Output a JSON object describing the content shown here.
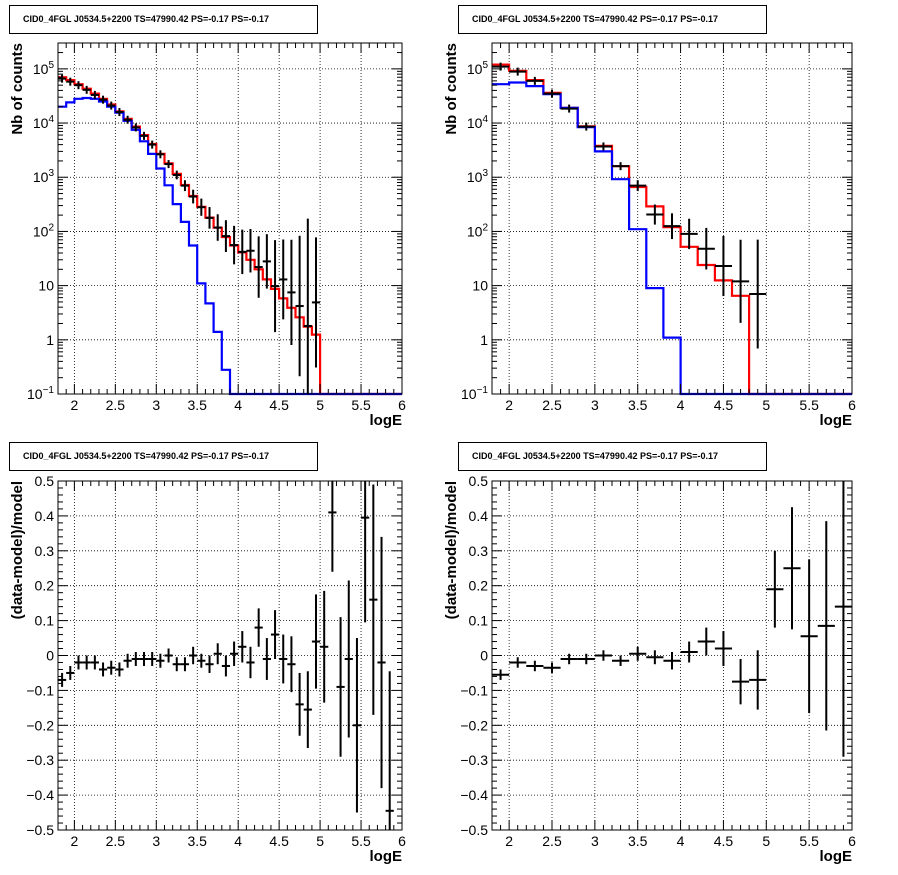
{
  "chart_data": [
    {
      "type": "histogram",
      "title": "CID0_4FGL J0534.5+2200 TS=47990.42 PS=-0.17 PS=-0.17",
      "xlabel": "logE",
      "ylabel": "Nb of counts",
      "xlim": [
        1.8,
        6.0
      ],
      "ylim": [
        0.1,
        300000
      ],
      "ylog": true,
      "grid": true,
      "x_ticks": [
        "2",
        "2.5",
        "3",
        "3.5",
        "4",
        "4.5",
        "5",
        "5.5",
        "6"
      ],
      "y_ticks": [
        "10^-1",
        "1",
        "10",
        "10^2",
        "10^3",
        "10^4",
        "10^5"
      ],
      "bins": {
        "start": 1.8,
        "width": 0.1
      },
      "series": [
        {
          "color": "#ff0000",
          "values": [
            70000,
            62000,
            52000,
            43000,
            35000,
            28000,
            22000,
            16500,
            12000,
            8600,
            6000,
            4100,
            2700,
            1800,
            1150,
            720,
            450,
            285,
            180,
            117,
            79,
            55,
            41,
            30,
            20,
            13,
            8.7,
            5.8,
            3.9,
            2.6,
            1.75,
            1.25
          ]
        },
        {
          "color": "#0000ff",
          "values": [
            20000,
            24000,
            28000,
            29000,
            28000,
            25000,
            20000,
            15500,
            11000,
            7500,
            4600,
            2700,
            1450,
            710,
            320,
            150,
            55,
            11,
            4.7,
            1.4,
            0.28,
            0.05
          ]
        }
      ],
      "data_points": [
        {
          "x": 1.85,
          "y": 66000
        },
        {
          "x": 1.95,
          "y": 58000
        },
        {
          "x": 2.05,
          "y": 50000
        },
        {
          "x": 2.15,
          "y": 41000
        },
        {
          "x": 2.25,
          "y": 33000
        },
        {
          "x": 2.35,
          "y": 27000
        },
        {
          "x": 2.45,
          "y": 21000
        },
        {
          "x": 2.55,
          "y": 16000
        },
        {
          "x": 2.65,
          "y": 11500
        },
        {
          "x": 2.75,
          "y": 8300
        },
        {
          "x": 2.85,
          "y": 5800
        },
        {
          "x": 2.95,
          "y": 4000
        },
        {
          "x": 3.05,
          "y": 2650
        },
        {
          "x": 3.15,
          "y": 1750
        },
        {
          "x": 3.25,
          "y": 1100
        },
        {
          "x": 3.35,
          "y": 700
        },
        {
          "x": 3.45,
          "y": 440
        },
        {
          "x": 3.55,
          "y": 280
        },
        {
          "x": 3.65,
          "y": 178
        },
        {
          "x": 3.75,
          "y": 118
        },
        {
          "x": 3.85,
          "y": 82
        },
        {
          "x": 3.95,
          "y": 56
        },
        {
          "x": 4.05,
          "y": 42
        },
        {
          "x": 4.15,
          "y": 44
        },
        {
          "x": 4.25,
          "y": 22
        },
        {
          "x": 4.35,
          "y": 28
        },
        {
          "x": 4.45,
          "y": 9.8
        },
        {
          "x": 4.55,
          "y": 13
        },
        {
          "x": 4.65,
          "y": 7.5
        },
        {
          "x": 4.75,
          "y": 4.2
        },
        {
          "x": 4.85,
          "y": 1.8
        },
        {
          "x": 4.95,
          "y": 4.9
        }
      ]
    },
    {
      "type": "histogram",
      "title": "CID0_4FGL J0534.5+2200 TS=47990.42 PS=-0.17 PS=-0.17",
      "xlabel": "logE",
      "ylabel": "Nb of counts",
      "xlim": [
        1.8,
        6.0
      ],
      "ylim": [
        0.1,
        300000
      ],
      "ylog": true,
      "grid": true,
      "x_ticks": [
        "2",
        "2.5",
        "3",
        "3.5",
        "4",
        "4.5",
        "5",
        "5.5",
        "6"
      ],
      "y_ticks": [
        "10^-1",
        "1",
        "10",
        "10^2",
        "10^3",
        "10^4",
        "10^5"
      ],
      "bins": {
        "start": 1.8,
        "width": 0.2
      },
      "series": [
        {
          "color": "#ff0000",
          "values": [
            120000,
            92000,
            62000,
            36000,
            19000,
            8700,
            3800,
            1600,
            660,
            290,
            120,
            52,
            24,
            12.5,
            6.5
          ]
        },
        {
          "color": "#0000ff",
          "values": [
            52000,
            56000,
            48000,
            34000,
            19000,
            8400,
            3000,
            920,
            110,
            9,
            1.1,
            0.1
          ]
        }
      ],
      "data_points": [
        {
          "x": 1.9,
          "y": 110000
        },
        {
          "x": 2.1,
          "y": 89000
        },
        {
          "x": 2.3,
          "y": 60000
        },
        {
          "x": 2.5,
          "y": 35000
        },
        {
          "x": 2.7,
          "y": 18500
        },
        {
          "x": 2.9,
          "y": 8600
        },
        {
          "x": 3.1,
          "y": 3700
        },
        {
          "x": 3.3,
          "y": 1600
        },
        {
          "x": 3.5,
          "y": 700
        },
        {
          "x": 3.7,
          "y": 205
        },
        {
          "x": 3.9,
          "y": 125
        },
        {
          "x": 4.1,
          "y": 90
        },
        {
          "x": 4.3,
          "y": 48
        },
        {
          "x": 4.5,
          "y": 23
        },
        {
          "x": 4.7,
          "y": 12
        },
        {
          "x": 4.9,
          "y": 7
        }
      ]
    },
    {
      "type": "scatter",
      "title": "CID0_4FGL J0534.5+2200 TS=47990.42 PS=-0.17 PS=-0.17",
      "xlabel": "logE",
      "ylabel": "(data-model)/model",
      "xlim": [
        1.8,
        6.0
      ],
      "ylim": [
        -0.5,
        0.5
      ],
      "grid": true,
      "x_ticks": [
        "2",
        "2.5",
        "3",
        "3.5",
        "4",
        "4.5",
        "5",
        "5.5",
        "6"
      ],
      "y_ticks": [
        "-0.5",
        "-0.4",
        "-0.3",
        "-0.2",
        "-0.1",
        "0",
        "0.1",
        "0.2",
        "0.3",
        "0.4",
        "0.5"
      ],
      "x_err": 0.05,
      "points": [
        {
          "x": 1.85,
          "y": -0.07,
          "err": 0.02
        },
        {
          "x": 1.95,
          "y": -0.05,
          "err": 0.02
        },
        {
          "x": 2.05,
          "y": -0.02,
          "err": 0.02
        },
        {
          "x": 2.15,
          "y": -0.02,
          "err": 0.02
        },
        {
          "x": 2.25,
          "y": -0.02,
          "err": 0.02
        },
        {
          "x": 2.35,
          "y": -0.04,
          "err": 0.02
        },
        {
          "x": 2.45,
          "y": -0.035,
          "err": 0.02
        },
        {
          "x": 2.55,
          "y": -0.04,
          "err": 0.02
        },
        {
          "x": 2.65,
          "y": -0.015,
          "err": 0.02
        },
        {
          "x": 2.75,
          "y": -0.01,
          "err": 0.02
        },
        {
          "x": 2.85,
          "y": -0.01,
          "err": 0.02
        },
        {
          "x": 2.95,
          "y": -0.01,
          "err": 0.02
        },
        {
          "x": 3.05,
          "y": -0.015,
          "err": 0.02
        },
        {
          "x": 3.15,
          "y": 0.0,
          "err": 0.02
        },
        {
          "x": 3.25,
          "y": -0.025,
          "err": 0.02
        },
        {
          "x": 3.35,
          "y": -0.025,
          "err": 0.02
        },
        {
          "x": 3.45,
          "y": 0.0,
          "err": 0.025
        },
        {
          "x": 3.55,
          "y": -0.015,
          "err": 0.02
        },
        {
          "x": 3.65,
          "y": -0.025,
          "err": 0.025
        },
        {
          "x": 3.75,
          "y": 0.005,
          "err": 0.03
        },
        {
          "x": 3.85,
          "y": -0.03,
          "err": 0.03
        },
        {
          "x": 3.95,
          "y": 0.005,
          "err": 0.035
        },
        {
          "x": 4.05,
          "y": 0.025,
          "err": 0.045
        },
        {
          "x": 4.15,
          "y": -0.02,
          "err": 0.045
        },
        {
          "x": 4.25,
          "y": 0.08,
          "err": 0.055
        },
        {
          "x": 4.35,
          "y": -0.01,
          "err": 0.06
        },
        {
          "x": 4.45,
          "y": 0.06,
          "err": 0.07
        },
        {
          "x": 4.55,
          "y": -0.01,
          "err": 0.07
        },
        {
          "x": 4.65,
          "y": -0.025,
          "err": 0.08
        },
        {
          "x": 4.75,
          "y": -0.14,
          "err": 0.09
        },
        {
          "x": 4.85,
          "y": -0.155,
          "err": 0.11
        },
        {
          "x": 4.95,
          "y": 0.04,
          "err": 0.135
        },
        {
          "x": 5.05,
          "y": 0.025,
          "err": 0.16
        },
        {
          "x": 5.15,
          "y": 0.41,
          "err": 0.17
        },
        {
          "x": 5.25,
          "y": -0.09,
          "err": 0.2
        },
        {
          "x": 5.35,
          "y": -0.01,
          "err": 0.225
        },
        {
          "x": 5.45,
          "y": -0.2,
          "err": 0.25
        },
        {
          "x": 5.55,
          "y": 0.395,
          "err": 0.3
        },
        {
          "x": 5.65,
          "y": 0.16,
          "err": 0.33
        },
        {
          "x": 5.75,
          "y": -0.02,
          "err": 0.36
        },
        {
          "x": 5.85,
          "y": -0.445,
          "err": 0.4
        }
      ]
    },
    {
      "type": "scatter",
      "title": "CID0_4FGL J0534.5+2200 TS=47990.42 PS=-0.17 PS=-0.17",
      "xlabel": "logE",
      "ylabel": "(data-model)/model",
      "xlim": [
        1.8,
        6.0
      ],
      "ylim": [
        -0.5,
        0.5
      ],
      "grid": true,
      "x_ticks": [
        "2",
        "2.5",
        "3",
        "3.5",
        "4",
        "4.5",
        "5",
        "5.5",
        "6"
      ],
      "y_ticks": [
        "-0.5",
        "-0.4",
        "-0.3",
        "-0.2",
        "-0.1",
        "0",
        "0.1",
        "0.2",
        "0.3",
        "0.4",
        "0.5"
      ],
      "x_err": 0.1,
      "points": [
        {
          "x": 1.9,
          "y": -0.055,
          "err": 0.015
        },
        {
          "x": 2.1,
          "y": -0.02,
          "err": 0.015
        },
        {
          "x": 2.3,
          "y": -0.03,
          "err": 0.015
        },
        {
          "x": 2.5,
          "y": -0.035,
          "err": 0.015
        },
        {
          "x": 2.7,
          "y": -0.01,
          "err": 0.015
        },
        {
          "x": 2.9,
          "y": -0.01,
          "err": 0.015
        },
        {
          "x": 3.1,
          "y": 0.0,
          "err": 0.015
        },
        {
          "x": 3.3,
          "y": -0.015,
          "err": 0.015
        },
        {
          "x": 3.5,
          "y": 0.005,
          "err": 0.02
        },
        {
          "x": 3.7,
          "y": -0.005,
          "err": 0.02
        },
        {
          "x": 3.9,
          "y": -0.015,
          "err": 0.025
        },
        {
          "x": 4.1,
          "y": 0.01,
          "err": 0.03
        },
        {
          "x": 4.3,
          "y": 0.04,
          "err": 0.04
        },
        {
          "x": 4.5,
          "y": 0.02,
          "err": 0.05
        },
        {
          "x": 4.7,
          "y": -0.075,
          "err": 0.065
        },
        {
          "x": 4.9,
          "y": -0.07,
          "err": 0.085
        },
        {
          "x": 5.1,
          "y": 0.19,
          "err": 0.11
        },
        {
          "x": 5.3,
          "y": 0.25,
          "err": 0.175
        },
        {
          "x": 5.5,
          "y": 0.055,
          "err": 0.22
        },
        {
          "x": 5.7,
          "y": 0.085,
          "err": 0.3
        },
        {
          "x": 5.9,
          "y": 0.14,
          "err": 0.43
        }
      ]
    }
  ]
}
